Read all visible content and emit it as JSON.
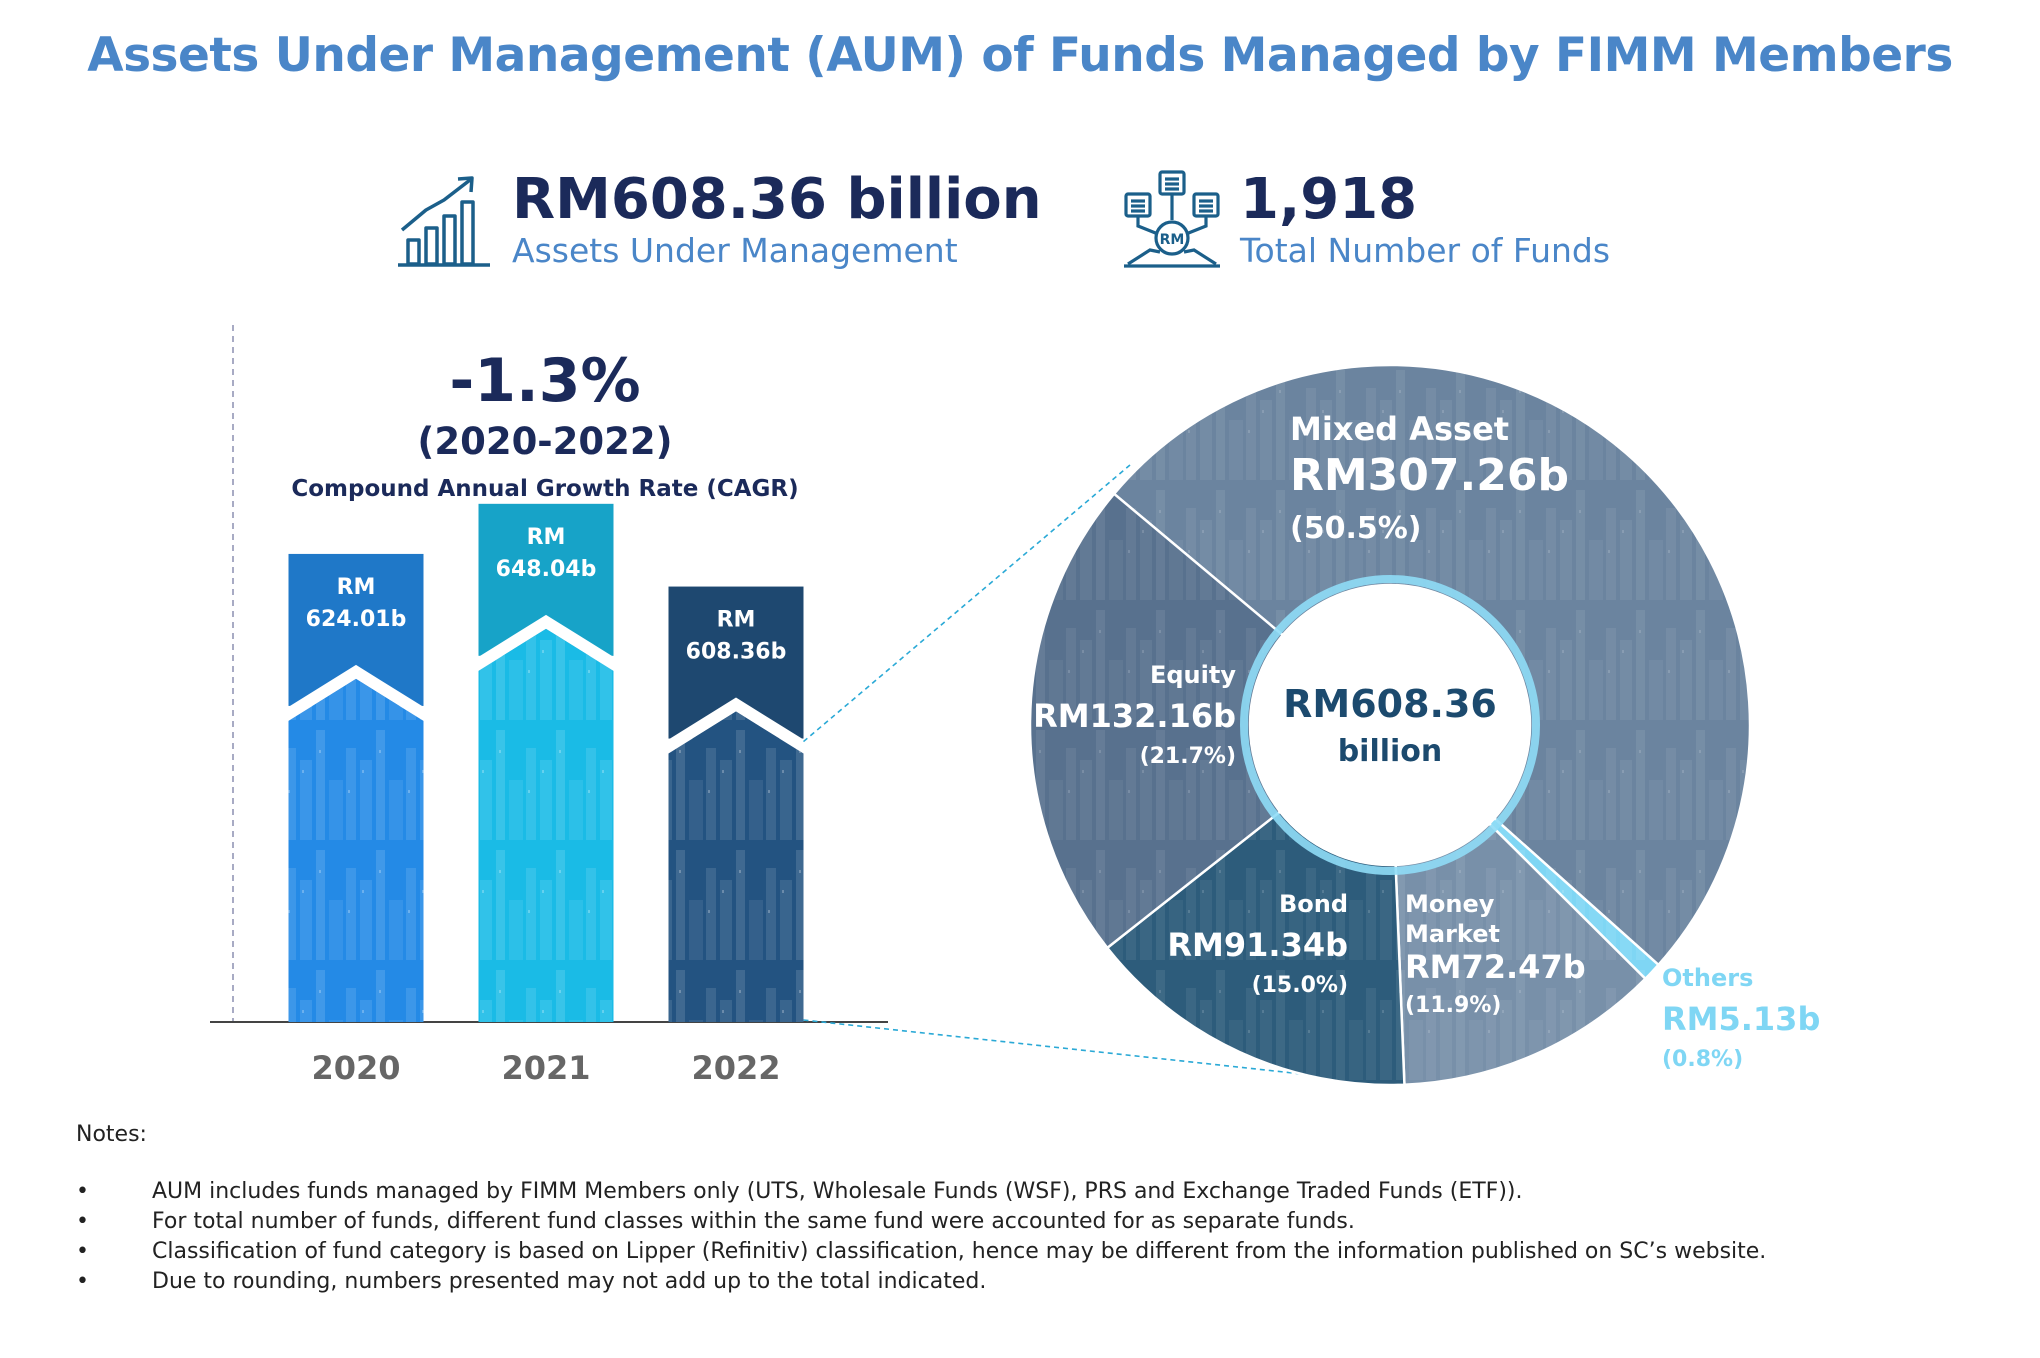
{
  "title": "Assets Under Management (AUM) of Funds Managed by FIMM Members",
  "kpis": [
    {
      "value": "RM608.36 billion",
      "label": "Assets Under Management",
      "icon": "growth-chart-icon"
    },
    {
      "value": "1,918",
      "label": "Total Number of Funds",
      "icon": "fund-network-icon"
    }
  ],
  "icon_badge": "RM",
  "cagr": {
    "value": "-1.3%",
    "range": "(2020-2022)",
    "label": "Compound Annual Growth Rate (CAGR)"
  },
  "chart_data": [
    {
      "type": "bar",
      "categories": [
        "2020",
        "2021",
        "2022"
      ],
      "values": [
        624.01,
        648.04,
        608.36
      ],
      "value_labels": [
        [
          "RM",
          "624.01b"
        ],
        [
          "RM",
          "648.04b"
        ],
        [
          "RM",
          "608.36b"
        ]
      ],
      "colors": [
        "#1f78c8",
        "#17a3c8",
        "#1e4870"
      ]
    },
    {
      "type": "pie",
      "center_label": [
        "RM608.36",
        "billion"
      ],
      "slices": [
        {
          "category": "Mixed Asset",
          "value": 307.26,
          "percent": 50.5,
          "value_label": "RM307.26b",
          "percent_label": "(50.5%)",
          "color": "#6b849f"
        },
        {
          "category": "Others",
          "value": 5.13,
          "percent": 0.8,
          "value_label": "RM5.13b",
          "percent_label": "(0.8%)",
          "color": "#7fd6f4"
        },
        {
          "category": "Money Market",
          "value": 72.47,
          "percent": 11.9,
          "value_label": "RM72.47b",
          "percent_label": "(11.9%)",
          "color": "#7890a9"
        },
        {
          "category": "Bond",
          "value": 91.34,
          "percent": 15.0,
          "value_label": "RM91.34b",
          "percent_label": "(15.0%)",
          "color": "#2d5c7b"
        },
        {
          "category": "Equity",
          "value": 132.16,
          "percent": 21.7,
          "value_label": "RM132.16b",
          "percent_label": "(21.7%)",
          "color": "#58718e"
        }
      ]
    }
  ],
  "notes": {
    "title": "Notes:",
    "items": [
      "AUM includes funds managed by FIMM Members only (UTS, Wholesale Funds (WSF), PRS and Exchange Traded Funds (ETF)).",
      "For total number of funds, different fund classes within the same fund were accounted for as separate funds.",
      "Classification of fund category is based on Lipper (Refinitiv) classification, hence may be different from the information published on SC’s website.",
      "Due to rounding, numbers presented may not add up to the total indicated."
    ]
  }
}
